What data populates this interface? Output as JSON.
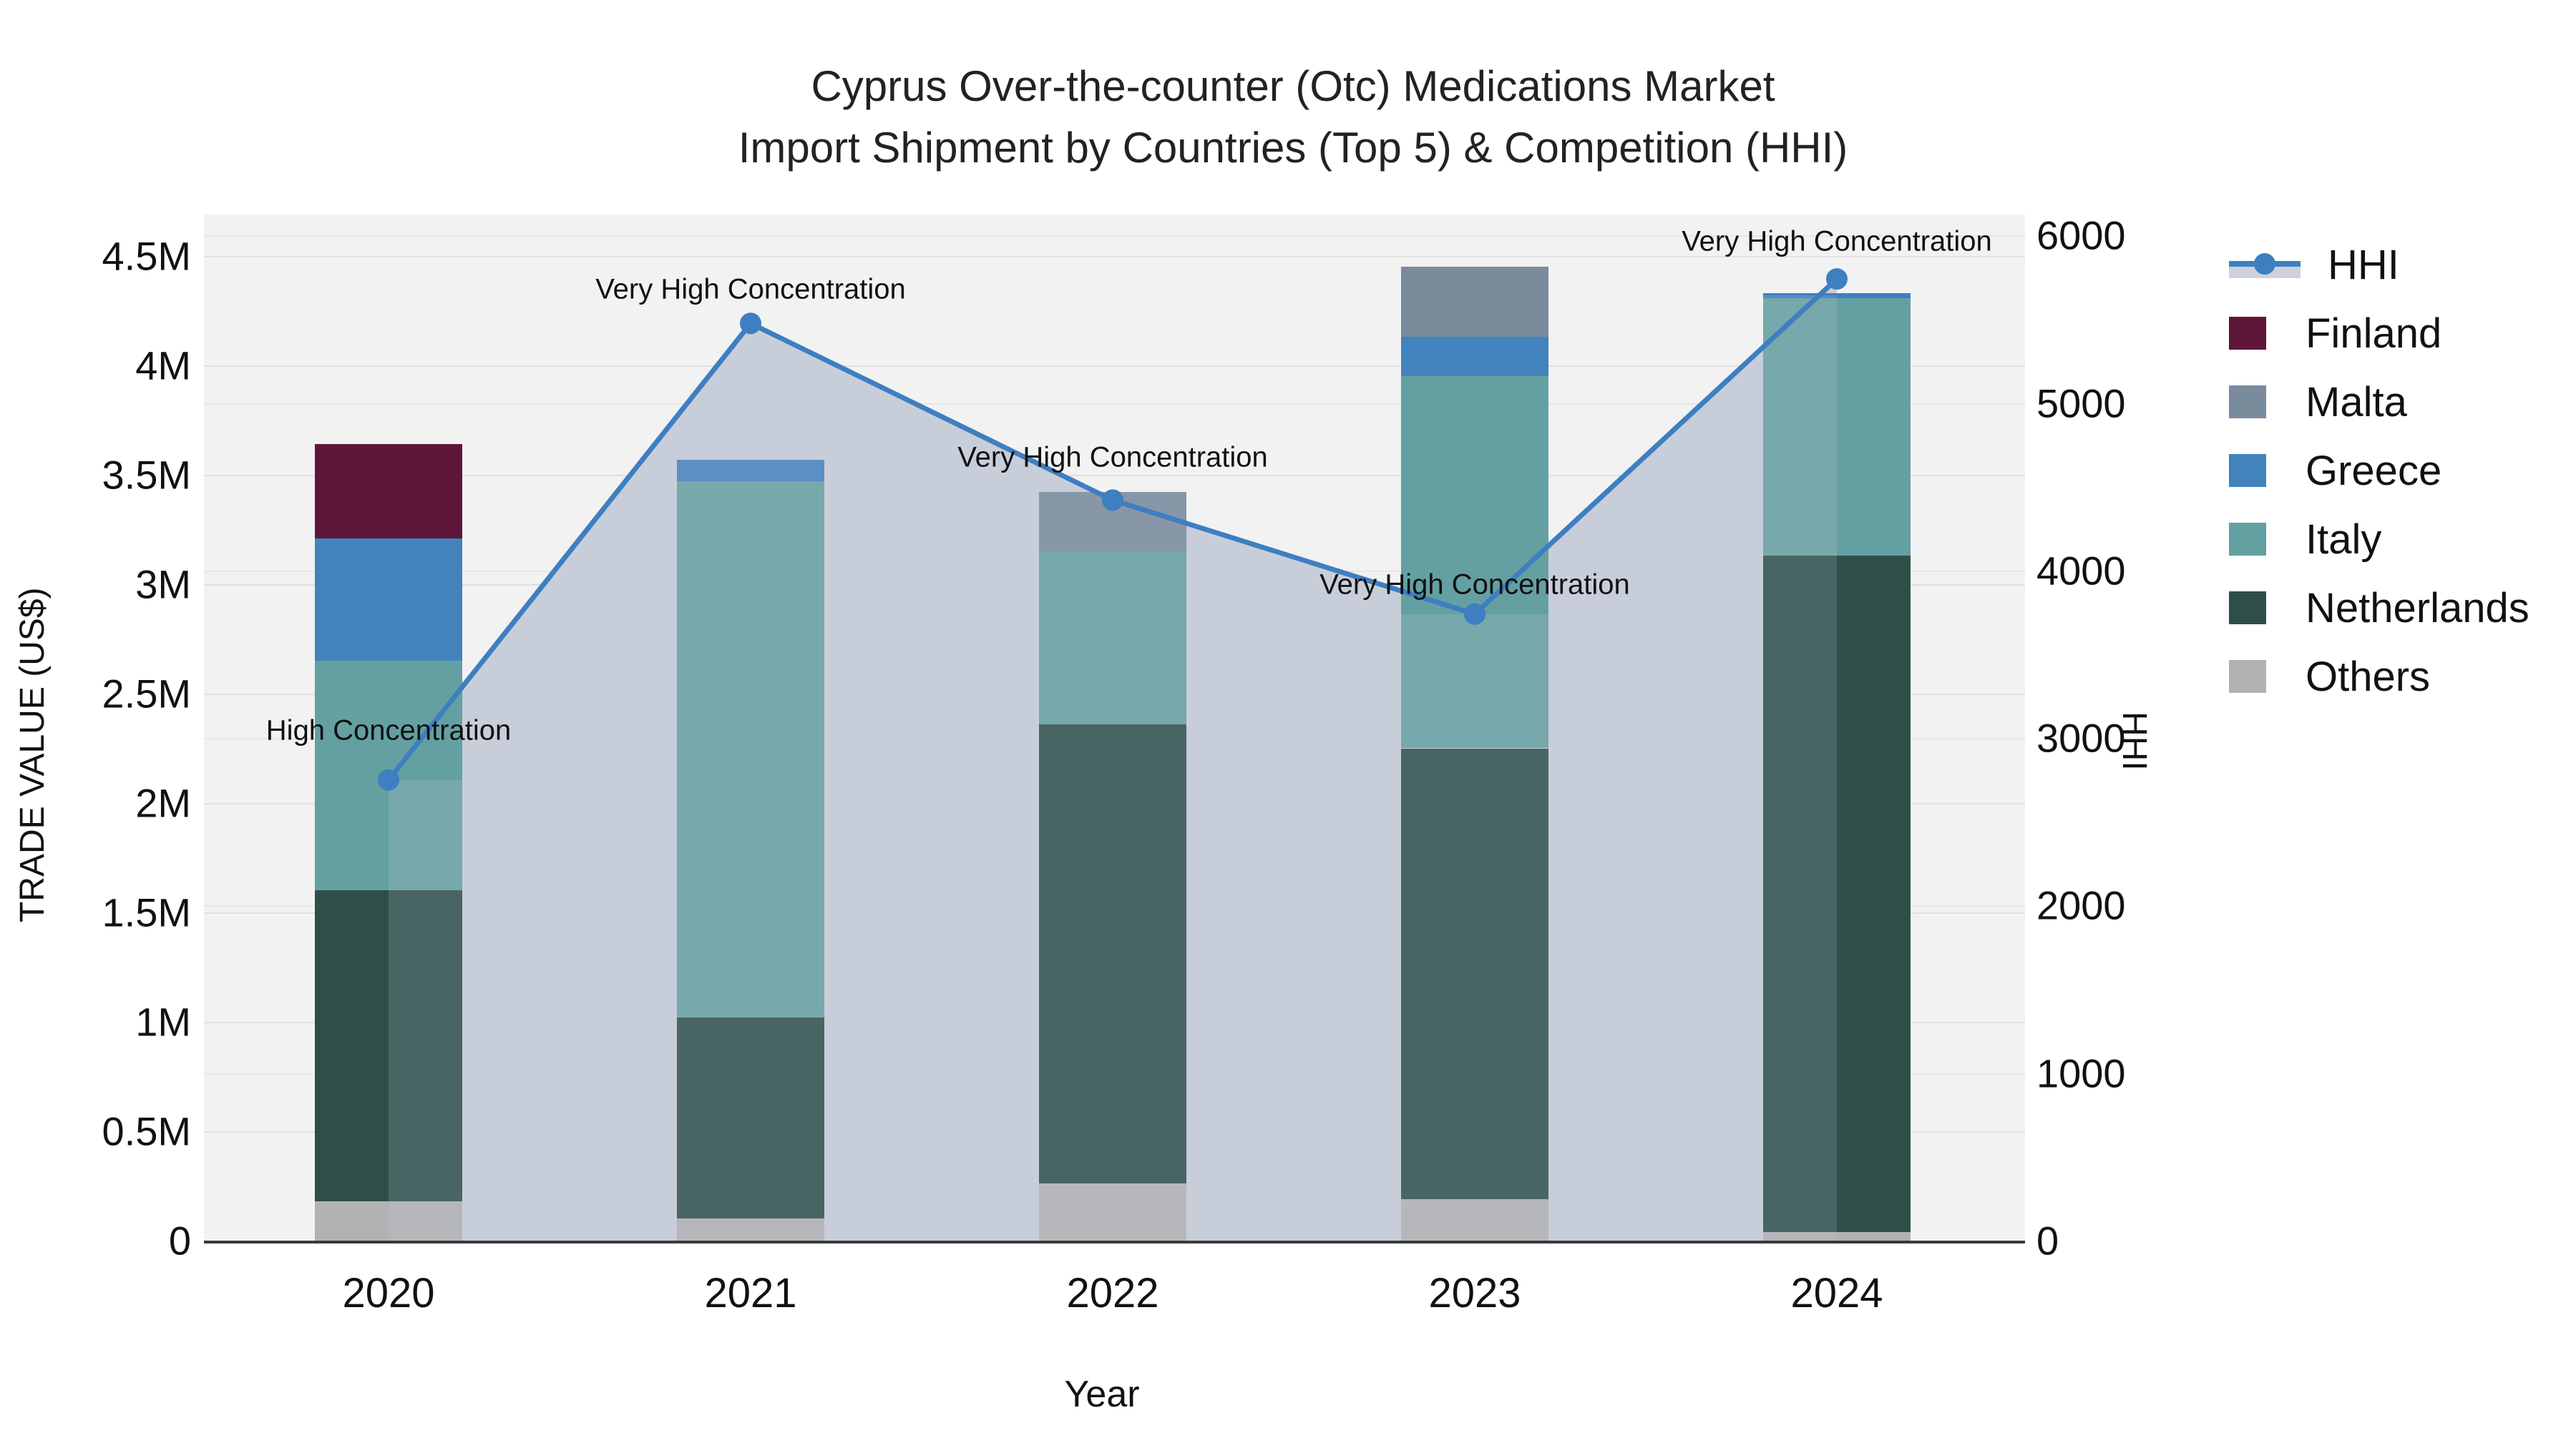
{
  "title": {
    "line1": "Cyprus Over-the-counter (Otc) Medications Market",
    "line2": "Import Shipment by Countries (Top 5) & Competition (HHI)"
  },
  "axes": {
    "x_title": "Year",
    "y_left_title": "TRADE VALUE (US$)",
    "y_right_title": "HHI",
    "y_left_ticks": [
      "0",
      "0.5M",
      "1M",
      "1.5M",
      "2M",
      "2.5M",
      "3M",
      "3.5M",
      "4M",
      "4.5M"
    ],
    "y_left_tick_values": [
      0,
      0.5,
      1,
      1.5,
      2,
      2.5,
      3,
      3.5,
      4,
      4.5
    ],
    "y_right_ticks": [
      "0",
      "1000",
      "2000",
      "3000",
      "4000",
      "5000",
      "6000"
    ],
    "y_right_tick_values": [
      0,
      1000,
      2000,
      3000,
      4000,
      5000,
      6000
    ]
  },
  "chart_data": {
    "type": "bar",
    "subtype": "stacked-bars-with-line",
    "title": "Cyprus Over-the-counter (Otc) Medications Market Import Shipment by Countries (Top 5) & Competition (HHI)",
    "xlabel": "Year",
    "ylabel_left": "TRADE VALUE (US$)",
    "ylabel_right": "HHI",
    "ylim_left_M": [
      0,
      4.69
    ],
    "ylim_right": [
      0,
      6130
    ],
    "grid": "on",
    "legend_position": "right",
    "categories": [
      "2020",
      "2021",
      "2022",
      "2023",
      "2024"
    ],
    "stack_order_bottom_to_top": [
      "Others",
      "Netherlands",
      "Italy",
      "Greece",
      "Malta",
      "Finland"
    ],
    "series": [
      {
        "name": "Finland",
        "color": "#5e1638",
        "values_M": [
          0.43,
          0,
          0,
          0,
          0
        ]
      },
      {
        "name": "Malta",
        "color": "#7a8b9c",
        "values_M": [
          0,
          0,
          0.27,
          0.32,
          0
        ]
      },
      {
        "name": "Greece",
        "color": "#4283bd",
        "values_M": [
          0.56,
          0.1,
          0,
          0.18,
          0
        ]
      },
      {
        "name": "Italy",
        "color": "#64a0a2",
        "values_M": [
          1.05,
          2.45,
          0.79,
          1.7,
          1.19
        ]
      },
      {
        "name": "Netherlands",
        "color": "#2e4f48",
        "values_M": [
          1.42,
          0.92,
          2.1,
          2.06,
          3.09
        ]
      },
      {
        "name": "Others",
        "color": "#b2b2b2",
        "values_M": [
          0.18,
          0.1,
          0.26,
          0.19,
          0.04
        ]
      }
    ],
    "bar_totals_M": [
      3.64,
      3.57,
      3.42,
      4.45,
      4.32
    ],
    "hhi": {
      "name": "HHI",
      "line_color": "#3d7fc1",
      "area_color": "#c8ced9",
      "values": [
        2750,
        5475,
        4420,
        3740,
        5740
      ],
      "annotations": [
        "High Concentration",
        "Very High Concentration",
        "Very High Concentration",
        "Very High Concentration",
        "Very High Concentration"
      ]
    }
  },
  "legend": {
    "entries": [
      {
        "label": "HHI",
        "type": "line",
        "color": "#3d7fc1",
        "band": "#ccd1da"
      },
      {
        "label": "Finland",
        "type": "box",
        "color": "#5e1638"
      },
      {
        "label": "Malta",
        "type": "box",
        "color": "#7a8b9c"
      },
      {
        "label": "Greece",
        "type": "box",
        "color": "#4283bd"
      },
      {
        "label": "Italy",
        "type": "box",
        "color": "#64a0a2"
      },
      {
        "label": "Netherlands",
        "type": "box",
        "color": "#2e4f48"
      },
      {
        "label": "Others",
        "type": "box",
        "color": "#b2b2b2"
      }
    ]
  }
}
